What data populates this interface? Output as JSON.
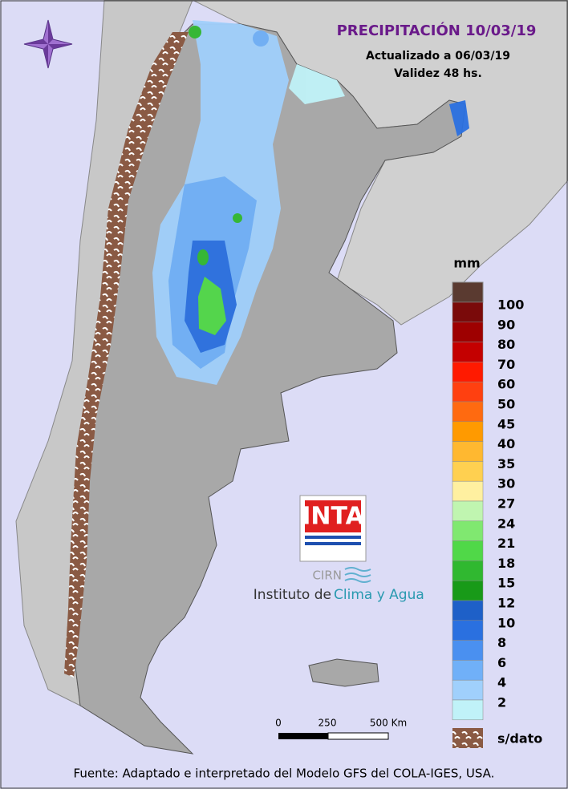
{
  "header": {
    "title": "PRECIPITACIÓN 10/03/19",
    "updated": "Actualizado a 06/03/19",
    "validity": "Validez 48 hs."
  },
  "legend": {
    "unit": "mm",
    "items": [
      {
        "label": "100",
        "color": "#7a0a0a"
      },
      {
        "label": "90",
        "color": "#9e0000"
      },
      {
        "label": "80",
        "color": "#c40000"
      },
      {
        "label": "70",
        "color": "#ff1a00"
      },
      {
        "label": "60",
        "color": "#ff4010"
      },
      {
        "label": "50",
        "color": "#ff6a10"
      },
      {
        "label": "45",
        "color": "#ff9a00"
      },
      {
        "label": "40",
        "color": "#ffb830"
      },
      {
        "label": "35",
        "color": "#ffd050"
      },
      {
        "label": "30",
        "color": "#fff0a0"
      },
      {
        "label": "27",
        "color": "#c0f5b0"
      },
      {
        "label": "24",
        "color": "#80e870"
      },
      {
        "label": "21",
        "color": "#50d848"
      },
      {
        "label": "18",
        "color": "#30b830"
      },
      {
        "label": "15",
        "color": "#189a18"
      },
      {
        "label": "12",
        "color": "#1e60c8"
      },
      {
        "label": "10",
        "color": "#2a70e0"
      },
      {
        "label": "8",
        "color": "#4a90f0"
      },
      {
        "label": "6",
        "color": "#70b0f8"
      },
      {
        "label": "4",
        "color": "#a0d0fc"
      },
      {
        "label": "2",
        "color": "#c0f2f8"
      }
    ],
    "no_data": "s/dato"
  },
  "scale": {
    "labels": [
      "0",
      "250",
      "500 Km"
    ]
  },
  "logo": {
    "brand": "INTA",
    "center": "CIRN",
    "institute": "Instituto de",
    "institute_highlight": "Clima y Agua"
  },
  "footer": "Fuente: Adaptado e interpretado del Modelo GFS del COLA-IGES, USA."
}
